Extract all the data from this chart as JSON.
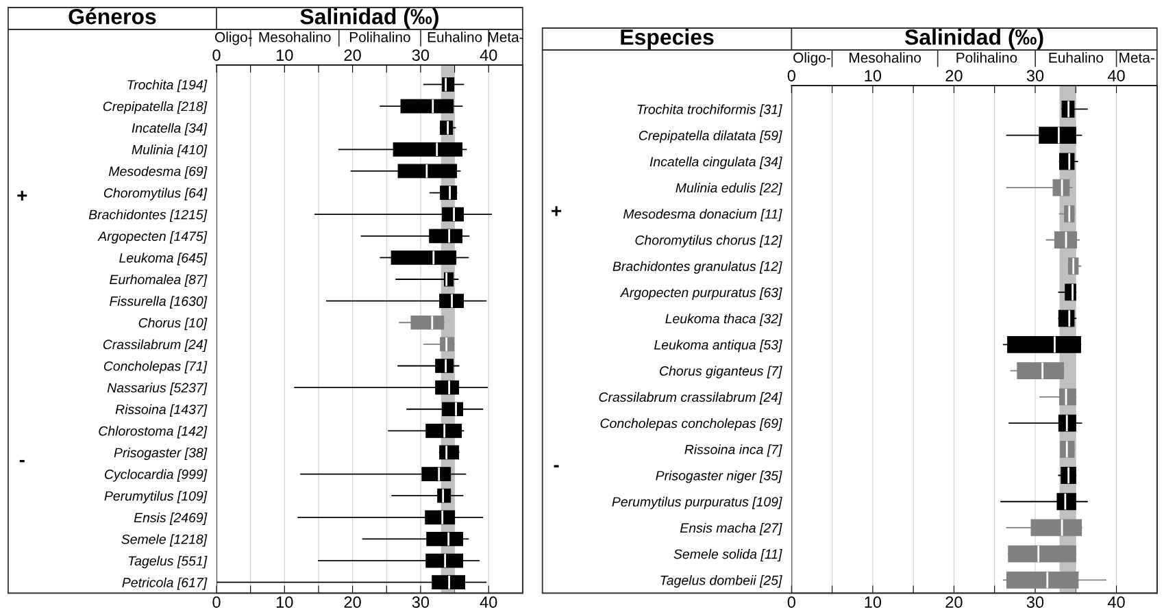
{
  "chart_data": [
    {
      "type": "box",
      "orientation": "horizontal",
      "ylabel": "Géneros",
      "title": "Salinidad (‰)",
      "categories": [
        "Trochita [194]",
        "Crepipatella [218]",
        "Incatella [34]",
        "Mulinia [410]",
        "Mesodesma [69]",
        "Choromytilus [64]",
        "Brachidontes [1215]",
        "Argopecten [1475]",
        "Leukoma [645]",
        "Eurhomalea [87]",
        "Fissurella [1630]",
        "Chorus [10]",
        "Crassilabrum [24]",
        "Concholepas [71]",
        "Nassarius [5237]",
        "Rissoina [1437]",
        "Chlorostoma [142]",
        "Prisogaster [38]",
        "Cyclocardia [999]",
        "Perumytilus [109]",
        "Ensis [2469]",
        "Semele [1218]",
        "Tagelus [551]",
        "Petricola [617]"
      ],
      "boxes": [
        {
          "low": 30.5,
          "q1": 33.2,
          "median": 33.7,
          "q3": 34.9,
          "high": 36.3
        },
        {
          "low": 24.1,
          "q1": 27.1,
          "median": 31.8,
          "q3": 34.8,
          "high": 36.1
        },
        {
          "low": 32.9,
          "q1": 32.9,
          "median": 34.0,
          "q3": 34.7,
          "high": 35.1
        },
        {
          "low": 18.0,
          "q1": 26.0,
          "median": 32.4,
          "q3": 36.1,
          "high": 36.7
        },
        {
          "low": 19.8,
          "q1": 26.7,
          "median": 30.9,
          "q3": 35.3,
          "high": 35.8
        },
        {
          "low": 31.4,
          "q1": 32.9,
          "median": 34.3,
          "q3": 35.3,
          "high": 35.3
        },
        {
          "low": 14.5,
          "q1": 33.2,
          "median": 34.9,
          "q3": 36.3,
          "high": 40.4
        },
        {
          "low": 21.3,
          "q1": 31.3,
          "median": 34.2,
          "q3": 36.1,
          "high": 37.1
        },
        {
          "low": 24.1,
          "q1": 25.7,
          "median": 31.9,
          "q3": 35.2,
          "high": 37.0
        },
        {
          "low": 26.4,
          "q1": 33.5,
          "median": 33.8,
          "q3": 34.8,
          "high": 35.5
        },
        {
          "low": 16.2,
          "q1": 32.8,
          "median": 34.6,
          "q3": 36.3,
          "high": 39.6
        },
        {
          "low": 26.9,
          "q1": 28.6,
          "median": 31.7,
          "q3": 33.4,
          "high": 33.4
        },
        {
          "low": 30.5,
          "q1": 32.9,
          "median": 33.8,
          "q3": 34.9,
          "high": 34.9
        },
        {
          "low": 26.7,
          "q1": 32.2,
          "median": 33.7,
          "q3": 34.8,
          "high": 35.6
        },
        {
          "low": 11.5,
          "q1": 32.2,
          "median": 34.2,
          "q3": 35.6,
          "high": 39.8
        },
        {
          "low": 28.0,
          "q1": 33.2,
          "median": 35.2,
          "q3": 36.2,
          "high": 39.1
        },
        {
          "low": 25.3,
          "q1": 30.8,
          "median": 33.5,
          "q3": 36.0,
          "high": 36.3
        },
        {
          "low": 32.8,
          "q1": 32.8,
          "median": 33.8,
          "q3": 35.6,
          "high": 35.6
        },
        {
          "low": 12.4,
          "q1": 30.2,
          "median": 32.7,
          "q3": 34.4,
          "high": 36.6
        },
        {
          "low": 25.8,
          "q1": 32.5,
          "median": 33.3,
          "q3": 34.4,
          "high": 36.2
        },
        {
          "low": 12.0,
          "q1": 30.7,
          "median": 33.2,
          "q3": 35.0,
          "high": 39.1
        },
        {
          "low": 21.5,
          "q1": 30.9,
          "median": 34.1,
          "q3": 36.2,
          "high": 37.0
        },
        {
          "low": 15.0,
          "q1": 30.8,
          "median": 33.6,
          "q3": 36.2,
          "high": 38.6
        },
        {
          "low": 0,
          "q1": 31.7,
          "median": 34.2,
          "q3": 36.5,
          "high": 39.6
        }
      ],
      "colors": [
        "#000000",
        "#000000",
        "#000000",
        "#000000",
        "#000000",
        "#000000",
        "#000000",
        "#000000",
        "#000000",
        "#000000",
        "#000000",
        "#808080",
        "#808080",
        "#000000",
        "#000000",
        "#000000",
        "#000000",
        "#000000",
        "#000000",
        "#000000",
        "#000000",
        "#000000",
        "#000000",
        "#000000"
      ],
      "xlim": [
        0,
        45
      ],
      "xticks": [
        0,
        {
          "value": 5,
          "label": null
        },
        10,
        {
          "value": 15,
          "label": null
        },
        20,
        {
          "value": 25,
          "label": null
        },
        30,
        {
          "value": 35,
          "label": null
        },
        40
      ],
      "x2lim": [
        0,
        45
      ],
      "x2ticks": [
        0,
        {
          "value": 5,
          "label": null
        },
        10,
        {
          "value": 15,
          "label": null
        },
        20,
        {
          "value": 25,
          "label": null
        },
        30,
        {
          "value": 35,
          "label": null
        },
        40
      ],
      "grid": "x",
      "bands": [
        {
          "axis": "x",
          "from": 33,
          "to": 35,
          "color": "#c0c0c0"
        }
      ],
      "annotations": [
        "+",
        "-",
        "Oligo-",
        "Mesohalino",
        "Polihalino",
        "Euhalino",
        "Meta-"
      ]
    },
    {
      "type": "box",
      "orientation": "horizontal",
      "ylabel": "Especies",
      "title": "Salinidad (‰)",
      "categories": [
        "Trochita trochiformis [31]",
        "Crepipatella dilatata [59]",
        "Incatella cingulata [34]",
        "Mulinia edulis [22]",
        "Mesodesma donacium [11]",
        "Choromytilus chorus [12]",
        "Brachidontes granulatus [12]",
        "Argopecten purpuratus [63]",
        "Leukoma thaca [32]",
        "Leukoma antiqua [53]",
        "Chorus giganteus [7]",
        "Crassilabrum crassilabrum [24]",
        "Concholepas concholepas [69]",
        "Rissoina inca [7]",
        "Prisogaster niger [35]",
        "Perumytilus purpuratus [109]",
        "Ensis macha [27]",
        "Semele solida [11]",
        "Tagelus dombeii [25]"
      ],
      "boxes": [
        {
          "low": 33.3,
          "q1": 33.3,
          "median": 34.1,
          "q3": 34.8,
          "high": 36.4
        },
        {
          "low": 26.5,
          "q1": 30.5,
          "median": 32.9,
          "q3": 35.0,
          "high": 35.7
        },
        {
          "low": 33.0,
          "q1": 33.0,
          "median": 34.2,
          "q3": 34.8,
          "high": 35.2
        },
        {
          "low": 26.5,
          "q1": 32.2,
          "median": 33.3,
          "q3": 34.2,
          "high": 34.5
        },
        {
          "low": 33.0,
          "q1": 33.6,
          "median": 34.2,
          "q3": 34.8,
          "high": 34.8
        },
        {
          "low": 31.4,
          "q1": 32.4,
          "median": 33.8,
          "q3": 35.1,
          "high": 35.4
        },
        {
          "low": 34.1,
          "q1": 34.1,
          "median": 34.7,
          "q3": 35.3,
          "high": 35.6
        },
        {
          "low": 32.9,
          "q1": 33.7,
          "median": 34.6,
          "q3": 35.0,
          "high": 35.0
        },
        {
          "low": 32.9,
          "q1": 32.9,
          "median": 34.2,
          "q3": 34.8,
          "high": 35.0
        },
        {
          "low": 26.1,
          "q1": 26.6,
          "median": 32.4,
          "q3": 35.6,
          "high": 35.6
        },
        {
          "low": 27.0,
          "q1": 27.8,
          "median": 30.9,
          "q3": 33.5,
          "high": 33.5
        },
        {
          "low": 30.6,
          "q1": 33.0,
          "median": 33.8,
          "q3": 35.0,
          "high": 35.0
        },
        {
          "low": 26.8,
          "q1": 32.9,
          "median": 33.9,
          "q3": 35.0,
          "high": 35.7
        },
        {
          "low": 33.1,
          "q1": 33.1,
          "median": 33.9,
          "q3": 34.8,
          "high": 34.8
        },
        {
          "low": 32.9,
          "q1": 33.2,
          "median": 34.1,
          "q3": 35.0,
          "high": 35.0
        },
        {
          "low": 25.8,
          "q1": 32.7,
          "median": 33.7,
          "q3": 35.0,
          "high": 36.4
        },
        {
          "low": 26.5,
          "q1": 29.5,
          "median": 33.3,
          "q3": 35.7,
          "high": 35.7
        },
        {
          "low": 26.7,
          "q1": 26.7,
          "median": 30.4,
          "q3": 35.0,
          "high": 35.0
        },
        {
          "low": 26.1,
          "q1": 26.5,
          "median": 31.5,
          "q3": 35.3,
          "high": 38.7
        }
      ],
      "colors": [
        "#000000",
        "#000000",
        "#000000",
        "#808080",
        "#808080",
        "#808080",
        "#808080",
        "#000000",
        "#000000",
        "#000000",
        "#808080",
        "#808080",
        "#000000",
        "#808080",
        "#000000",
        "#000000",
        "#808080",
        "#808080",
        "#808080"
      ],
      "xlim": [
        0,
        45
      ],
      "xticks": [
        0,
        {
          "value": 5,
          "label": null
        },
        10,
        {
          "value": 15,
          "label": null
        },
        20,
        {
          "value": 25,
          "label": null
        },
        30,
        {
          "value": 35,
          "label": null
        },
        40
      ],
      "x2lim": [
        0,
        45
      ],
      "x2ticks": [
        0,
        {
          "value": 5,
          "label": null
        },
        10,
        {
          "value": 15,
          "label": null
        },
        20,
        {
          "value": 25,
          "label": null
        },
        30,
        {
          "value": 35,
          "label": null
        },
        40
      ],
      "grid": "x",
      "bands": [
        {
          "axis": "x",
          "from": 33,
          "to": 35,
          "color": "#c0c0c0"
        }
      ],
      "annotations": [
        "+",
        "-",
        "Oligo-",
        "Mesohalino",
        "Polihalino",
        "Euhalino",
        "Meta-"
      ]
    }
  ]
}
